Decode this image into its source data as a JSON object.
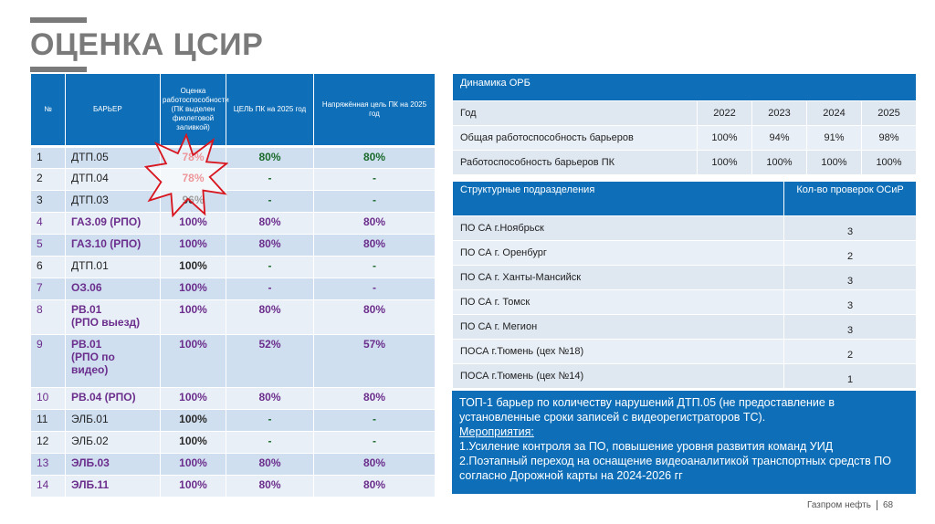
{
  "title": "ОЦЕНКА ЦСИР",
  "left_table": {
    "headers": [
      "№",
      "БАРЬЕР",
      "Оценка работоспособности (ПК выделен фиолетовой заливкой)",
      "ЦЕЛЬ ПК на 2025 год",
      "Напряжённая цель ПК на 2025 год"
    ],
    "rows": [
      {
        "n": "1",
        "barrier": "ДТП.05",
        "score": "78%",
        "goal": "80%",
        "strained": "80%"
      },
      {
        "n": "2",
        "barrier": "ДТП.04",
        "score": "78%",
        "goal": "-",
        "strained": "-"
      },
      {
        "n": "3",
        "barrier": "ДТП.03",
        "score": "96%",
        "goal": "-",
        "strained": "-"
      },
      {
        "n": "4",
        "barrier": "ГАЗ.09 (РПО)",
        "score": "100%",
        "goal": "80%",
        "strained": "80%"
      },
      {
        "n": "5",
        "barrier": "ГАЗ.10 (РПО)",
        "score": "100%",
        "goal": "80%",
        "strained": "80%"
      },
      {
        "n": "6",
        "barrier": "ДТП.01",
        "score": "100%",
        "goal": "-",
        "strained": "-"
      },
      {
        "n": "7",
        "barrier": "ОЗ.06",
        "score": "100%",
        "goal": "-",
        "strained": "-"
      },
      {
        "n": "8",
        "barrier_lines": [
          "РВ.01",
          "(РПО выезд)"
        ],
        "score": "100%",
        "goal": "80%",
        "strained": "80%"
      },
      {
        "n": "9",
        "barrier_lines": [
          "РВ.01",
          "(РПО по",
          "видео)"
        ],
        "score": "100%",
        "goal": "52%",
        "strained": "57%"
      },
      {
        "n": "10",
        "barrier": "РВ.04 (РПО)",
        "score": "100%",
        "goal": "80%",
        "strained": "80%"
      },
      {
        "n": "11",
        "barrier": "ЭЛБ.01",
        "score": "100%",
        "goal": "-",
        "strained": "-"
      },
      {
        "n": "12",
        "barrier": "ЭЛБ.02",
        "score": "100%",
        "goal": "-",
        "strained": "-"
      },
      {
        "n": "13",
        "barrier": "ЭЛБ.03",
        "score": "100%",
        "goal": "80%",
        "strained": "80%"
      },
      {
        "n": "14",
        "barrier": "ЭЛБ.11",
        "score": "100%",
        "goal": "80%",
        "strained": "80%"
      }
    ]
  },
  "orb_table": {
    "title": "Динамика ОРБ",
    "year_label": "Год",
    "years": [
      "2022",
      "2023",
      "2024",
      "2025"
    ],
    "rows": [
      {
        "label": "Общая работоспособность барьеров",
        "values": [
          "100%",
          "94%",
          "91%",
          "98%"
        ]
      },
      {
        "label": "Работоспособность барьеров ПК",
        "values": [
          "100%",
          "100%",
          "100%",
          "100%"
        ]
      }
    ]
  },
  "units_table": {
    "header_unit": "Структурные подразделения",
    "header_count": "Кол-во проверок ОСиР",
    "rows": [
      {
        "unit": "ПО СА г.Ноябрьск",
        "count": "3"
      },
      {
        "unit": "ПО СА г. Оренбург",
        "count": "2"
      },
      {
        "unit": "ПО СА г. Ханты-Мансийск",
        "count": "3"
      },
      {
        "unit": "ПО СА г. Томск",
        "count": "3"
      },
      {
        "unit": "ПО СА г. Мегион",
        "count": "3"
      },
      {
        "unit": "ПОСА г.Тюмень (цех №18)",
        "count": "2"
      },
      {
        "unit": "ПОСА г.Тюмень (цех №14)",
        "count": "1"
      }
    ]
  },
  "summary": {
    "top": "ТОП-1 барьер по количеству нарушений ДТП.05 (не предоставление в установленные сроки записей с видеорегистраторов ТС).",
    "measures_label": "Мероприятия:",
    "item1": "1.Усиление контроля за ПО, повышение уровня развития команд УИД",
    "item2": "2.Поэтапный переход на оснащение видеоаналитикой транспортных средств ПО согласно Дорожной карты на 2024-2026 гг"
  },
  "footer": {
    "brand": "Газпром нефть",
    "page": "68"
  },
  "colors": {
    "accent": "#0e6fb8",
    "title_gray": "#7a7a7a",
    "red": "#d8161f",
    "green": "#1a6a2a",
    "purple": "#6b2e8c"
  }
}
